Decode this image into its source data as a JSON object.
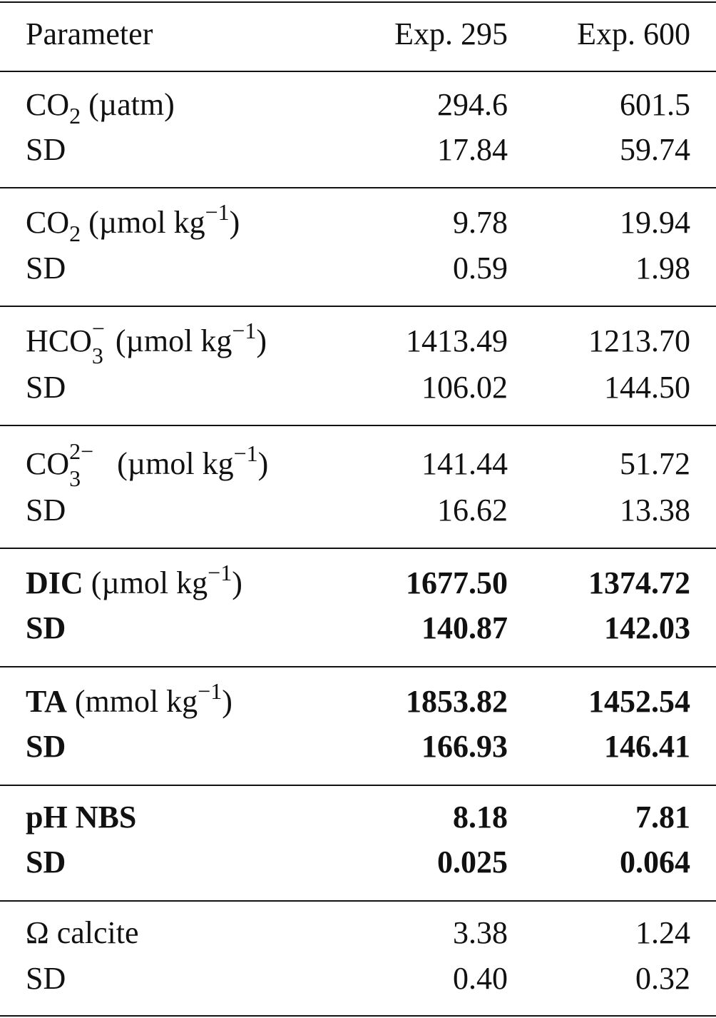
{
  "header": {
    "parameter": "Parameter",
    "exp1": "Exp. 295",
    "exp2": "Exp. 600"
  },
  "rows": [
    {
      "param_base": "CO",
      "param_sub": "2",
      "param_unit": "(µatm)",
      "value_exp295": "294.6",
      "value_exp600": "601.5",
      "sd_label": "SD",
      "sd_exp295": "17.84",
      "sd_exp600": "59.74"
    },
    {
      "param_base": "CO",
      "param_sub": "2",
      "param_unit": "(µmol kg",
      "param_unit_sup": "−1",
      "param_unit_close": ")",
      "value_exp295": "9.78",
      "value_exp600": "19.94",
      "sd_label": "SD",
      "sd_exp295": "0.59",
      "sd_exp600": "1.98"
    },
    {
      "param_base": "HCO",
      "param_sub": "3",
      "param_sup": "−",
      "param_unit": "(µmol kg",
      "param_unit_sup": "−1",
      "param_unit_close": ")",
      "value_exp295": "1413.49",
      "value_exp600": "1213.70",
      "sd_label": "SD",
      "sd_exp295": "106.02",
      "sd_exp600": "144.50"
    },
    {
      "param_base": "CO",
      "param_sub": "3",
      "param_sup": "2−",
      "param_unit": "(µmol kg",
      "param_unit_sup": "−1",
      "param_unit_close": ")",
      "value_exp295": "141.44",
      "value_exp600": "51.72",
      "sd_label": "SD",
      "sd_exp295": "16.62",
      "sd_exp600": "13.38"
    },
    {
      "param_base": "DIC",
      "param_unit": "(µmol kg",
      "param_unit_sup": "−1",
      "param_unit_close": ")",
      "value_exp295": "1677.50",
      "value_exp600": "1374.72",
      "sd_label": "SD",
      "sd_exp295": "140.87",
      "sd_exp600": "142.03"
    },
    {
      "param_base": "TA",
      "param_unit": "(mmol kg",
      "param_unit_sup": "−1",
      "param_unit_close": ")",
      "value_exp295": "1853.82",
      "value_exp600": "1452.54",
      "sd_label": "SD",
      "sd_exp295": "166.93",
      "sd_exp600": "146.41"
    },
    {
      "param_base": "pH NBS",
      "value_exp295": "8.18",
      "value_exp600": "7.81",
      "sd_label": "SD",
      "sd_exp295": "0.025",
      "sd_exp600": "0.064"
    },
    {
      "param_base": "Ω calcite",
      "value_exp295": "3.38",
      "value_exp600": "1.24",
      "sd_label": "SD",
      "sd_exp295": "0.40",
      "sd_exp600": "0.32"
    }
  ]
}
